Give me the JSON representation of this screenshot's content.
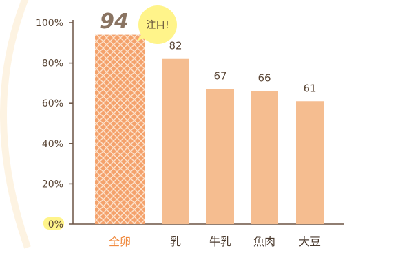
{
  "chart_data": {
    "type": "bar",
    "categories": [
      "全卵",
      "乳",
      "牛乳",
      "魚肉",
      "大豆"
    ],
    "values": [
      94,
      82,
      67,
      66,
      61
    ],
    "value_labels": [
      "94",
      "82",
      "67",
      "66",
      "61"
    ],
    "highlight_index": 0,
    "callout": "注目!",
    "yticks": [
      "0%",
      "20%",
      "40%",
      "60%",
      "80%",
      "100%"
    ],
    "ylim": [
      0,
      100
    ],
    "colors": {
      "bar": "#f5bd90",
      "highlight_bar": "#f4a26c",
      "highlight_pattern": "#fce2cc",
      "highlight_label": "#f08a3e",
      "callout_fill": "#fff48a",
      "axis": "#6b5344",
      "zero_mark": "#fff48a"
    }
  }
}
